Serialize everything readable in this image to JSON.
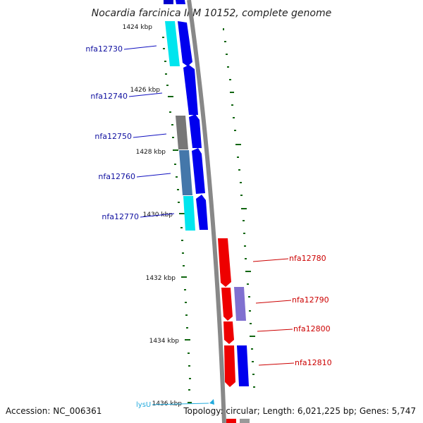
{
  "title": "Nocardia farcinica IFM 10152, complete genome",
  "footer": {
    "accession": "Accession: NC_006361",
    "summary": "Topology: circular; Length: 6,021,225 bp; Genes: 5,747"
  },
  "ticks": [
    "1424 kbp",
    "1426 kbp",
    "1428 kbp",
    "1430 kbp",
    "1432 kbp",
    "1434 kbp",
    "1436 kbp"
  ],
  "genes_left": [
    {
      "label": "nfa12730",
      "color": "#1010a0"
    },
    {
      "label": "nfa12740",
      "color": "#1010a0"
    },
    {
      "label": "nfa12750",
      "color": "#1010a0"
    },
    {
      "label": "nfa12760",
      "color": "#1010a0"
    },
    {
      "label": "nfa12770",
      "color": "#1010a0"
    }
  ],
  "genes_right": [
    {
      "label": "nfa12780",
      "color": "#cc0000"
    },
    {
      "label": "nfa12790",
      "color": "#cc0000"
    },
    {
      "label": "nfa12800",
      "color": "#cc0000"
    },
    {
      "label": "nfa12810",
      "color": "#cc0000"
    }
  ],
  "feature_label": "lysU",
  "colors": {
    "forward_gene": "#0000ee",
    "reverse_gene": "#ee0000",
    "cyan_band": "#00e5ee",
    "gray_band": "#777777",
    "steel_band": "#4477aa",
    "purple_band": "#8070d0",
    "backbone": "#888888",
    "tick": "#116611"
  }
}
